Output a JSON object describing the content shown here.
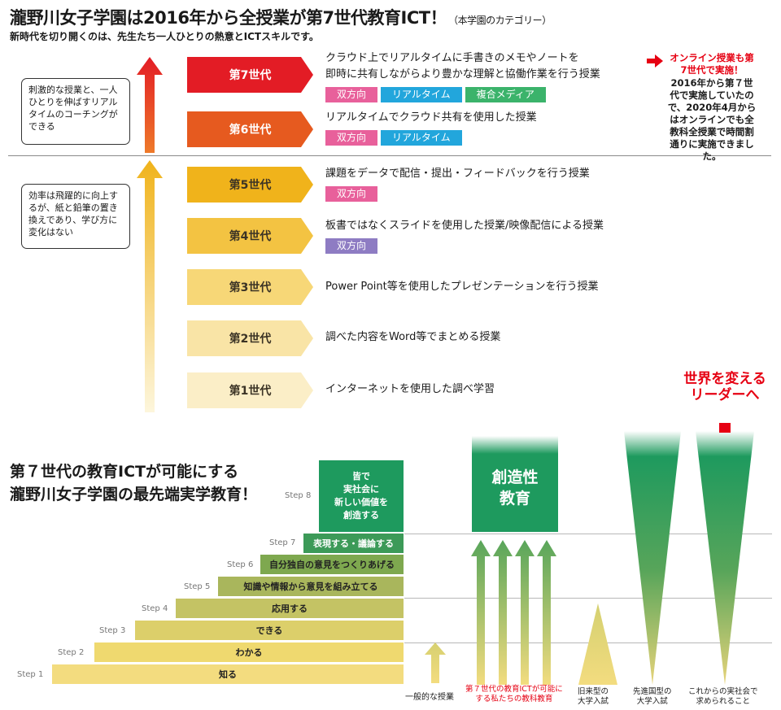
{
  "header": {
    "title": "瀧野川女子学園は2016年から全授業が第7世代教育ICT！",
    "title_note": "（本学園のカテゴリー）",
    "subtitle": "新時代を切り開くのは、先生たち一人ひとりの熱意とICTスキルです。"
  },
  "bubbles": {
    "upper": "刺激的な授業と、一人ひとりを伸ばすリアルタイムのコーチングができる",
    "lower": "効率は飛躍的に向上するが、紙と鉛筆の置き換えであり、学び方に変化はない"
  },
  "generations": [
    {
      "label": "第7世代",
      "desc": [
        "クラウド上でリアルタイムに手書きのメモやノートを",
        "即時に共有しながらより豊かな理解と協働作業を行う授業"
      ],
      "tags": [
        "双方向",
        "リアルタイム",
        "複合メディア"
      ]
    },
    {
      "label": "第6世代",
      "desc": [
        "リアルタイムでクラウド共有を使用した授業"
      ],
      "tags": [
        "双方向",
        "リアルタイム"
      ]
    },
    {
      "label": "第5世代",
      "desc": [
        "課題をデータで配信・提出・フィードバックを行う授業"
      ],
      "tags": [
        "双方向"
      ]
    },
    {
      "label": "第4世代",
      "desc": [
        "板書ではなくスライドを使用した授業/映像配信による授業"
      ],
      "tags": [
        "双方向"
      ]
    },
    {
      "label": "第3世代",
      "desc": [
        "Power Point等を使用したプレゼンテーションを行う授業"
      ],
      "tags": []
    },
    {
      "label": "第2世代",
      "desc": [
        "調べた内容をWord等でまとめる授業"
      ],
      "tags": []
    },
    {
      "label": "第1世代",
      "desc": [
        "インターネットを使用した調べ学習"
      ],
      "tags": []
    }
  ],
  "tag_colors": {
    "双方向": "#e8609b",
    "リアルタイム": "#22a6dc",
    "複合メディア": "#3bb36b",
    "双方向_lower_5": "#e8609b",
    "双方向_lower_4": "#8e7cc3"
  },
  "online_note": {
    "title": "オンライン授業も第7世代で実施！",
    "body": "2016年から第７世代で実施していたので、2020年4月からはオンラインでも全教科全授業で時間割通りに実施できました。"
  },
  "section2": {
    "title_line1": "第７世代の教育ICTが可能にする",
    "title_line2": "瀧野川女子学園の最先端実学教育！"
  },
  "steps": [
    {
      "label": "Step 1",
      "text": "知る"
    },
    {
      "label": "Step 2",
      "text": "わかる"
    },
    {
      "label": "Step 3",
      "text": "できる"
    },
    {
      "label": "Step 4",
      "text": "応用する"
    },
    {
      "label": "Step 5",
      "text": "知識や情報から意見を組み立てる"
    },
    {
      "label": "Step 6",
      "text": "自分独自の意見をつくりあげる"
    },
    {
      "label": "Step 7",
      "text": "表現する・議論する"
    },
    {
      "label": "Step 8",
      "text": "皆で実社会に新しい価値を創造する"
    }
  ],
  "step8_lines": [
    "皆で",
    "実社会に",
    "新しい価値を",
    "創造する"
  ],
  "creative": {
    "line1": "創造性",
    "line2": "教育"
  },
  "columns": {
    "general": "一般的な授業",
    "ours_line1": "第７世代の教育ICTが可能に",
    "ours_line2": "する私たちの教科教育",
    "old_exam_line1": "旧来型の",
    "old_exam_line2": "大学入試",
    "advanced_exam_line1": "先進国型の",
    "advanced_exam_line2": "大学入試",
    "future_line1": "これからの実社会で",
    "future_line2": "求められること"
  },
  "leader": {
    "line1": "世界を変える",
    "line2": "リーダーへ"
  },
  "colors": {
    "gen7": "#e31c25",
    "gen6": "#e65a1f",
    "gen5": "#f0b31b",
    "gen4": "#f3c342",
    "gen3": "#f7d777",
    "gen2": "#f9e4a6",
    "gen1": "#fbeec7",
    "accent_red": "#e60012",
    "green": "#1e9a5e"
  }
}
